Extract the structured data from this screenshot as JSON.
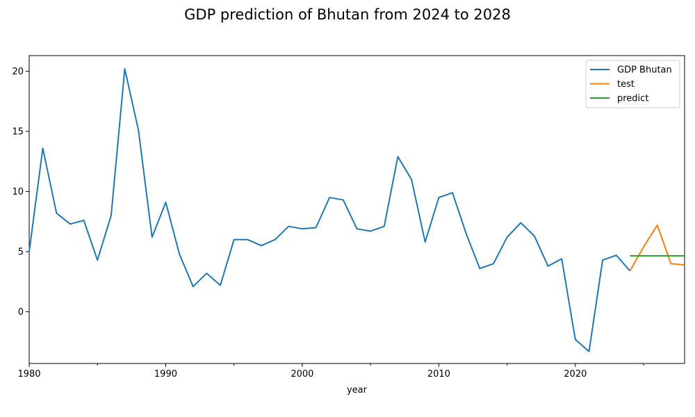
{
  "chart_data": {
    "type": "line",
    "title": "GDP prediction of Bhutan from 2024 to 2028",
    "xlabel": "year",
    "ylabel": "",
    "xlim": [
      1980,
      2028
    ],
    "ylim": [
      -4.3,
      21.3
    ],
    "x_ticks_major": [
      1980,
      1990,
      2000,
      2010,
      2020
    ],
    "x_ticks_minor": [
      1985,
      1995,
      2005,
      2015,
      2025
    ],
    "y_ticks": [
      0,
      5,
      10,
      15,
      20
    ],
    "grid": false,
    "legend_position": "top-right",
    "series": [
      {
        "name": "GDP Bhutan",
        "color": "#1f77b4",
        "x": [
          1980,
          1981,
          1982,
          1983,
          1984,
          1985,
          1986,
          1987,
          1988,
          1989,
          1990,
          1991,
          1992,
          1993,
          1994,
          1995,
          1996,
          1997,
          1998,
          1999,
          2000,
          2001,
          2002,
          2003,
          2004,
          2005,
          2006,
          2007,
          2008,
          2009,
          2010,
          2011,
          2012,
          2013,
          2014,
          2015,
          2016,
          2017,
          2018,
          2019,
          2020,
          2021,
          2022,
          2023,
          2024
        ],
        "values": [
          5.0,
          13.6,
          8.2,
          7.3,
          7.6,
          4.3,
          8.0,
          20.2,
          15.1,
          6.2,
          9.1,
          4.8,
          2.1,
          3.2,
          2.2,
          6.0,
          6.0,
          5.5,
          6.0,
          7.1,
          6.9,
          7.0,
          9.5,
          9.3,
          6.9,
          6.7,
          7.1,
          12.9,
          11.0,
          5.8,
          9.5,
          9.9,
          6.5,
          3.6,
          4.0,
          6.2,
          7.4,
          6.3,
          3.8,
          4.4,
          -2.3,
          -3.3,
          4.3,
          4.7,
          3.4
        ]
      },
      {
        "name": "test",
        "color": "#ff7f0e",
        "x": [
          2024,
          2025,
          2026,
          2027,
          2028
        ],
        "values": [
          3.4,
          5.4,
          7.2,
          4.0,
          3.9
        ]
      },
      {
        "name": "predict",
        "color": "#2ca02c",
        "x": [
          2024,
          2025,
          2026,
          2027,
          2028
        ],
        "values": [
          4.65,
          4.65,
          4.65,
          4.65,
          4.65
        ]
      }
    ]
  }
}
